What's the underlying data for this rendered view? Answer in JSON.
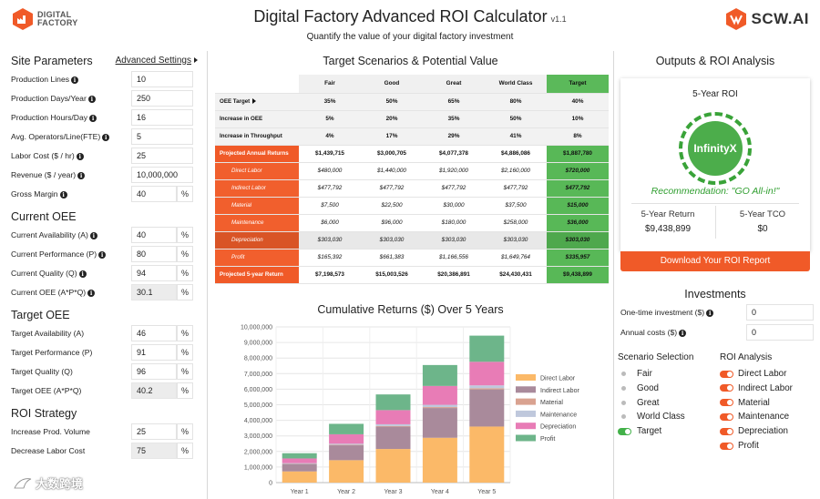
{
  "header": {
    "logo_left_line1": "DIGITAL",
    "logo_left_line2": "FACTORY",
    "title": "Digital Factory Advanced ROI Calculator",
    "version": "v1.1",
    "subtitle": "Quantify the value of your digital factory investment",
    "logo_right": "SCW.AI"
  },
  "site": {
    "title": "Site Parameters",
    "advanced": "Advanced Settings",
    "fields": [
      {
        "label": "Production Lines",
        "value": "10"
      },
      {
        "label": "Production Days/Year",
        "value": "250"
      },
      {
        "label": "Production Hours/Day",
        "value": "16"
      },
      {
        "label": "Avg. Operators/Line(FTE)",
        "value": "5"
      },
      {
        "label": "Labor Cost ($ / hr)",
        "value": "25"
      },
      {
        "label": "Revenue ($ / year)",
        "value": "10,000,000"
      },
      {
        "label": "Gross Margin",
        "value": "40",
        "unit": "%"
      }
    ]
  },
  "current_oee": {
    "title": "Current OEE",
    "fields": [
      {
        "label": "Current Availability (A)",
        "value": "40",
        "unit": "%"
      },
      {
        "label": "Current Performance (P)",
        "value": "80",
        "unit": "%"
      },
      {
        "label": "Current Quality (Q)",
        "value": "94",
        "unit": "%"
      },
      {
        "label": "Current OEE (A*P*Q)",
        "value": "30.1",
        "unit": "%"
      }
    ]
  },
  "target_oee": {
    "title": "Target OEE",
    "fields": [
      {
        "label": "Target Availability (A)",
        "value": "46",
        "unit": "%"
      },
      {
        "label": "Target Performance (P)",
        "value": "91",
        "unit": "%"
      },
      {
        "label": "Target Quality (Q)",
        "value": "96",
        "unit": "%"
      },
      {
        "label": "Target OEE (A*P*Q)",
        "value": "40.2",
        "unit": "%"
      }
    ]
  },
  "roi_strategy": {
    "title": "ROI Strategy",
    "fields": [
      {
        "label": "Increase Prod. Volume",
        "value": "25",
        "unit": "%"
      },
      {
        "label": "Decrease Labor Cost",
        "value": "75",
        "unit": "%"
      }
    ]
  },
  "scenarios": {
    "title": "Target Scenarios & Potential Value",
    "columns": [
      "Fair",
      "Good",
      "Great",
      "World Class",
      "Target"
    ],
    "rows": [
      {
        "label": "OEE Target",
        "values": [
          "35%",
          "50%",
          "65%",
          "80%",
          "40%"
        ]
      },
      {
        "label": "Increase in OEE",
        "values": [
          "5%",
          "20%",
          "35%",
          "50%",
          "10%"
        ]
      },
      {
        "label": "Increase in Throughput",
        "values": [
          "4%",
          "17%",
          "29%",
          "41%",
          "8%"
        ]
      },
      {
        "label": "Projected Annual Returns",
        "values": [
          "$1,439,715",
          "$3,000,705",
          "$4,077,378",
          "$4,886,086",
          "$1,887,780"
        ]
      },
      {
        "label": "Direct Labor",
        "values": [
          "$480,000",
          "$1,440,000",
          "$1,920,000",
          "$2,160,000",
          "$720,000"
        ]
      },
      {
        "label": "Indirect Labor",
        "values": [
          "$477,792",
          "$477,792",
          "$477,792",
          "$477,792",
          "$477,792"
        ]
      },
      {
        "label": "Material",
        "values": [
          "$7,500",
          "$22,500",
          "$30,000",
          "$37,500",
          "$15,000"
        ]
      },
      {
        "label": "Maintenance",
        "values": [
          "$6,000",
          "$96,000",
          "$180,000",
          "$258,000",
          "$36,000"
        ]
      },
      {
        "label": "Depreciation",
        "values": [
          "$303,030",
          "$303,030",
          "$303,030",
          "$303,030",
          "$303,030"
        ]
      },
      {
        "label": "Profit",
        "values": [
          "$165,392",
          "$661,383",
          "$1,166,556",
          "$1,649,764",
          "$335,957"
        ]
      },
      {
        "label": "Projected 5-year Return",
        "values": [
          "$7,198,573",
          "$15,003,526",
          "$20,386,891",
          "$24,430,431",
          "$9,438,899"
        ]
      }
    ]
  },
  "chart_data": {
    "type": "bar",
    "stacked": true,
    "title": "Cumulative Returns ($) Over 5 Years",
    "categories": [
      "Year 1",
      "Year 2",
      "Year 3",
      "Year 4",
      "Year 5"
    ],
    "ylim": [
      0,
      10000000
    ],
    "yticks": [
      "0",
      "1,000,000",
      "2,000,000",
      "3,000,000",
      "4,000,000",
      "5,000,000",
      "6,000,000",
      "7,000,000",
      "8,000,000",
      "9,000,000",
      "10,000,000"
    ],
    "legend_position": "right",
    "series": [
      {
        "name": "Direct Labor",
        "color": "#fbb968",
        "values": [
          720000,
          1440000,
          2160000,
          2880000,
          3600000
        ]
      },
      {
        "name": "Indirect Labor",
        "color": "#a98a9b",
        "values": [
          477792,
          955584,
          1433376,
          1911168,
          2388960
        ]
      },
      {
        "name": "Material",
        "color": "#d9a290",
        "values": [
          15000,
          30000,
          45000,
          60000,
          75000
        ]
      },
      {
        "name": "Maintenance",
        "color": "#bfc8dc",
        "values": [
          36000,
          72000,
          108000,
          144000,
          180000
        ]
      },
      {
        "name": "Depreciation",
        "color": "#e87cb6",
        "values": [
          303030,
          606060,
          909090,
          1212120,
          1515150
        ]
      },
      {
        "name": "Profit",
        "color": "#6db58a",
        "values": [
          335957,
          671914,
          1007871,
          1343828,
          1679785
        ]
      }
    ]
  },
  "outputs": {
    "title": "Outputs & ROI Analysis",
    "roi_label": "5-Year ROI",
    "roi_value": "InfinityX",
    "recommendation": "Recommendation: \"GO All-in!\"",
    "return_label": "5-Year Return",
    "return_value": "$9,438,899",
    "tco_label": "5-Year TCO",
    "tco_value": "$0",
    "download": "Download Your ROI Report"
  },
  "investments": {
    "title": "Investments",
    "one_time_label": "One-time investment ($)",
    "one_time_value": "0",
    "annual_label": "Annual costs ($)",
    "annual_value": "0"
  },
  "scenario_selection": {
    "title": "Scenario Selection",
    "options": [
      "Fair",
      "Good",
      "Great",
      "World Class",
      "Target"
    ],
    "selected": "Target"
  },
  "roi_analysis": {
    "title": "ROI Analysis",
    "options": [
      "Direct Labor",
      "Indirect Labor",
      "Material",
      "Maintenance",
      "Depreciation",
      "Profit"
    ]
  },
  "watermark": "大数跨境"
}
